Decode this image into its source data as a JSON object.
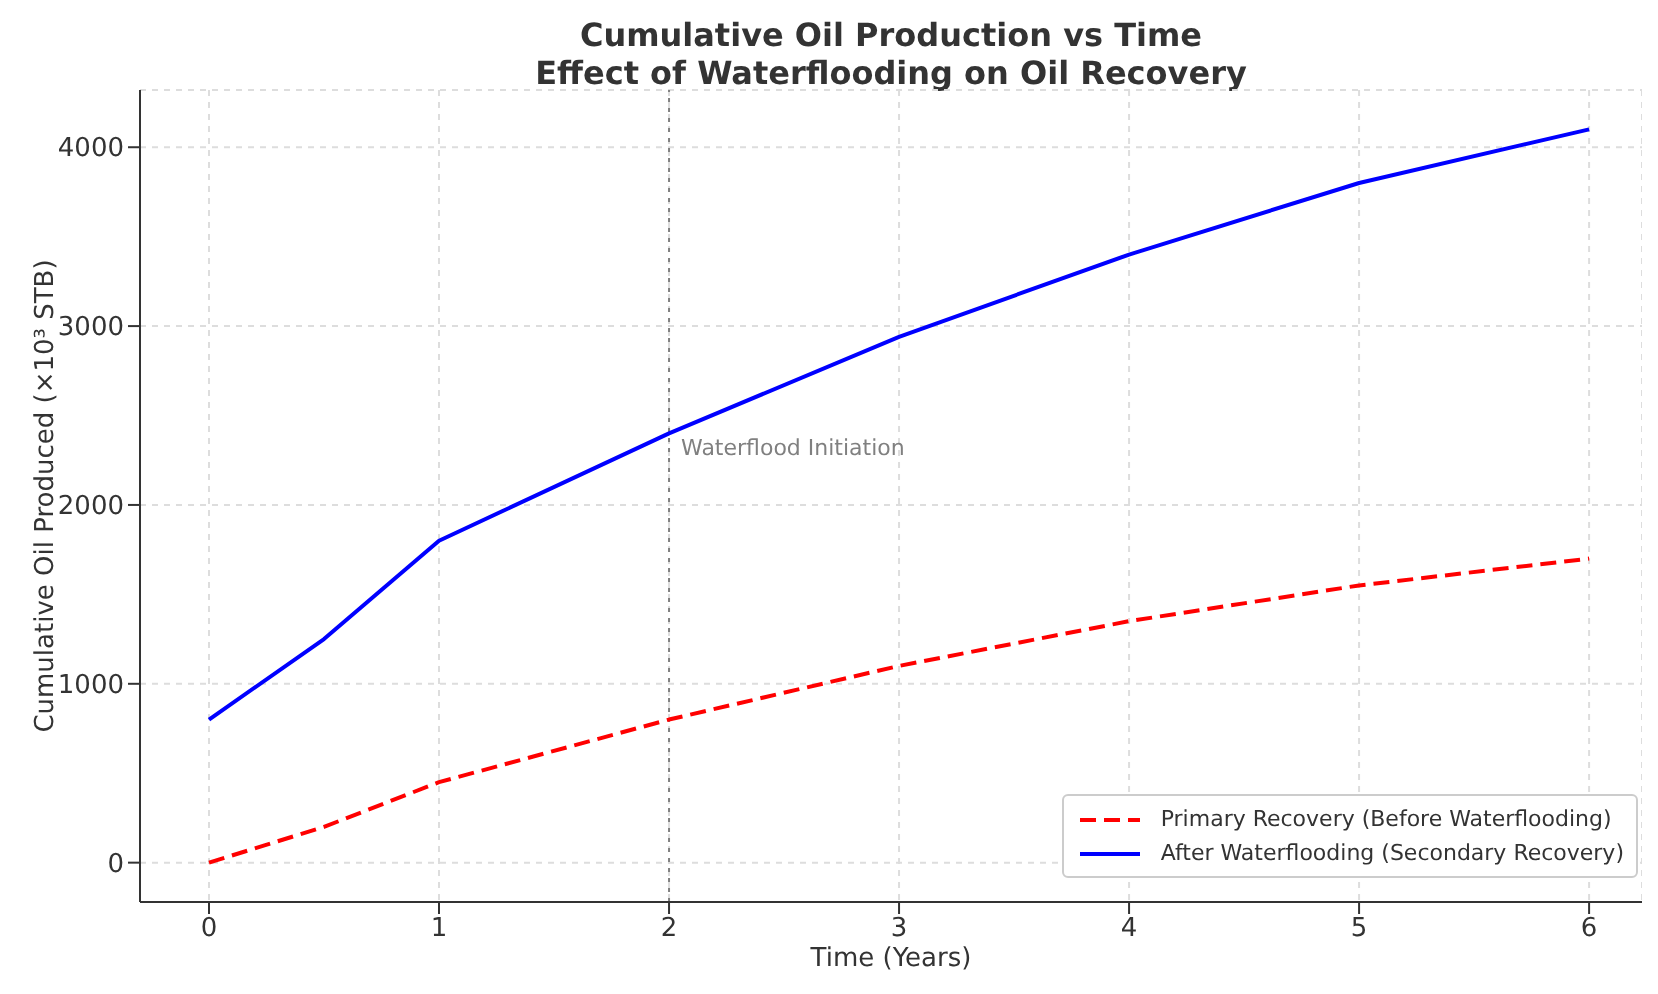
{
  "chart_data": {
    "type": "line",
    "title": "Cumulative Oil Production vs Time\nEffect of Waterflooding on Oil Recovery",
    "xlabel": "Time (Years)",
    "ylabel": "Cumulative Oil Produced (×10³ STB)",
    "x": [
      0,
      0.5,
      1,
      2,
      3,
      4,
      5,
      6
    ],
    "series": [
      {
        "name": "Primary Recovery (Before Waterflooding)",
        "color": "#ff0000",
        "line_style": "dashed",
        "values": [
          0,
          200,
          450,
          800,
          1100,
          1350,
          1550,
          1700
        ]
      },
      {
        "name": "After Waterflooding (Secondary Recovery)",
        "color": "#0000ff",
        "line_style": "solid",
        "values": [
          800,
          1250,
          1800,
          2400,
          2940,
          3400,
          3800,
          4100
        ]
      }
    ],
    "xlim": [
      -0.3,
      6.23
    ],
    "xticks": [
      0,
      1,
      2,
      3,
      4,
      5,
      6
    ],
    "ylim": [
      -220,
      4320
    ],
    "yticks": [
      0,
      1000,
      2000,
      3000,
      4000
    ],
    "ref_lines": [
      {
        "axis": "x",
        "value": 2,
        "label": "Waterflood Initiation",
        "color": "#808080",
        "line_style": "dotted"
      }
    ],
    "grid": true,
    "legend": "bottom right",
    "marker": "none"
  }
}
